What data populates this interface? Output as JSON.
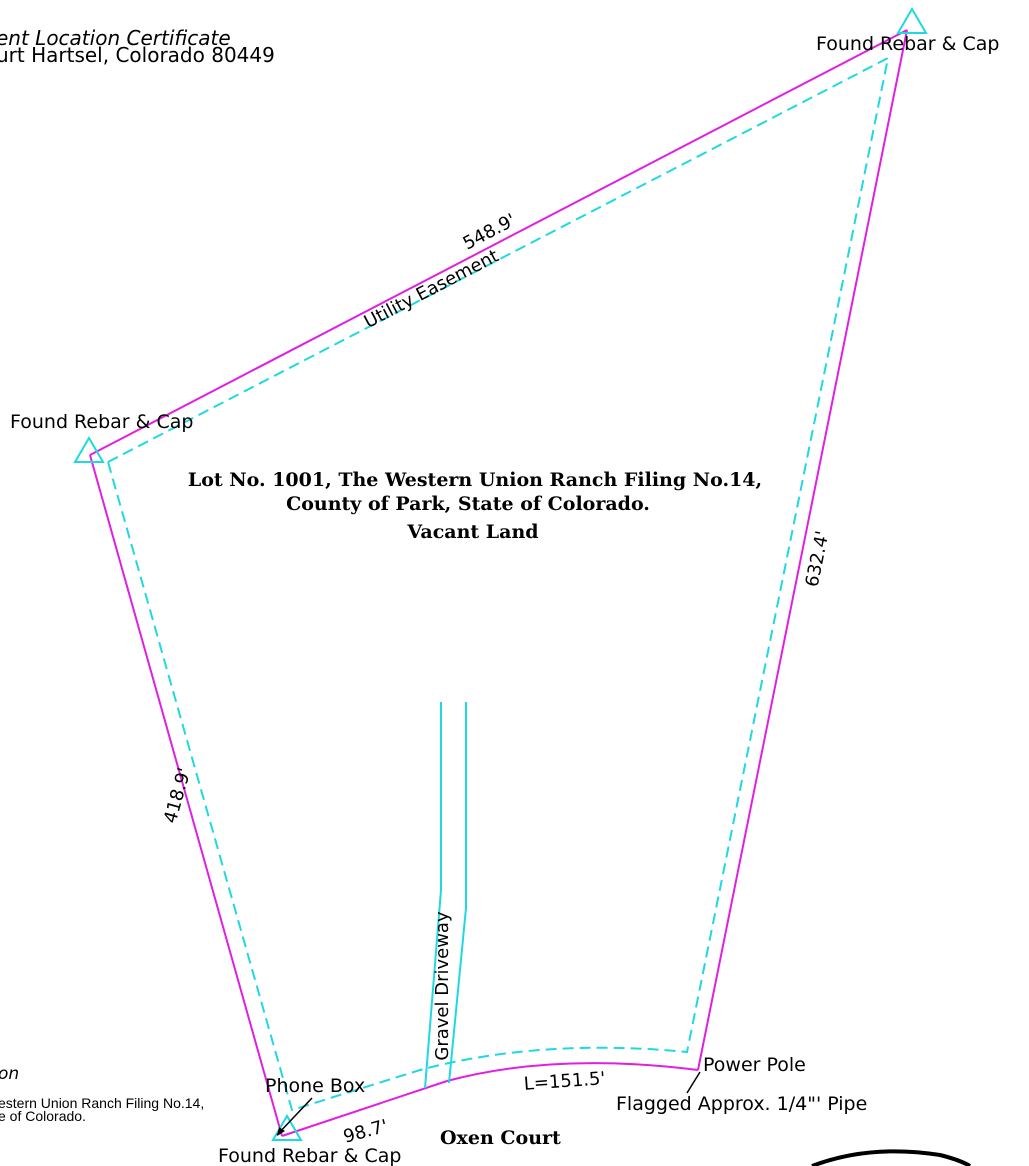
{
  "header": {
    "line1": "ent Location Certificate",
    "line2": "urt Hartsel, Colorado 80449"
  },
  "lot": {
    "line1": "Lot No. 1001, The Western Union Ranch Filing No.14,",
    "line2": "County of Park, State of Colorado.",
    "line3": "Vacant Land"
  },
  "boundary": {
    "north": "548.9'",
    "east": "632.4'",
    "west": "418.9'",
    "south_straight": "98.7'",
    "south_arc": "L=151.5'"
  },
  "easement_label": "Utility Easement",
  "driveway_label": "Gravel Driveway",
  "monuments": {
    "ne": "Found Rebar & Cap",
    "nw": "Found Rebar & Cap",
    "sw": "Found Rebar & Cap"
  },
  "features": {
    "phone_box": "Phone Box",
    "power_pole": "Power Pole",
    "pipe": "Flagged Approx. 1/4\"' Pipe"
  },
  "street": "Oxen Court",
  "legal_fragment": {
    "heading": "on",
    "line1": "estern Union Ranch Filing No.14,",
    "line2": "e of Colorado."
  },
  "colors": {
    "boundary": "#e020e0",
    "easement": "#20d8e0",
    "text": "#000000"
  }
}
